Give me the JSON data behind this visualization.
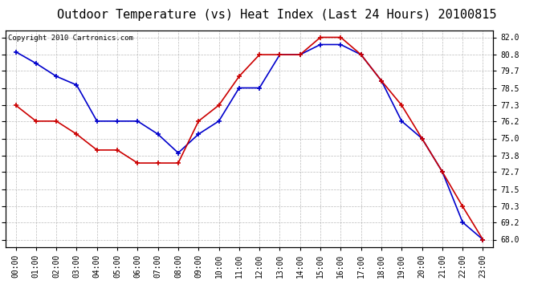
{
  "title": "Outdoor Temperature (vs) Heat Index (Last 24 Hours) 20100815",
  "copyright_text": "Copyright 2010 Cartronics.com",
  "hours": [
    "00:00",
    "01:00",
    "02:00",
    "03:00",
    "04:00",
    "05:00",
    "06:00",
    "07:00",
    "08:00",
    "09:00",
    "10:00",
    "11:00",
    "12:00",
    "13:00",
    "14:00",
    "15:00",
    "16:00",
    "17:00",
    "18:00",
    "19:00",
    "20:00",
    "21:00",
    "22:00",
    "23:00"
  ],
  "temp_blue": [
    81.0,
    80.2,
    79.3,
    78.7,
    76.2,
    76.2,
    76.2,
    75.3,
    74.0,
    75.3,
    76.2,
    78.5,
    78.5,
    80.8,
    80.8,
    81.5,
    81.5,
    80.8,
    79.0,
    76.2,
    75.0,
    72.7,
    69.2,
    68.0
  ],
  "heat_red": [
    77.3,
    76.2,
    76.2,
    75.3,
    74.2,
    74.2,
    73.3,
    73.3,
    73.3,
    76.2,
    77.3,
    79.3,
    80.8,
    80.8,
    80.8,
    82.0,
    82.0,
    80.8,
    79.0,
    77.3,
    75.0,
    72.7,
    70.3,
    68.0
  ],
  "ylim_min": 67.5,
  "ylim_max": 82.5,
  "yticks": [
    68.0,
    69.2,
    70.3,
    71.5,
    72.7,
    73.8,
    75.0,
    76.2,
    77.3,
    78.5,
    79.7,
    80.8,
    82.0
  ],
  "blue_color": "#0000cc",
  "red_color": "#cc0000",
  "bg_color": "#ffffff",
  "grid_color": "#aaaaaa",
  "title_fontsize": 11,
  "copyright_fontsize": 6.5,
  "tick_fontsize": 7
}
